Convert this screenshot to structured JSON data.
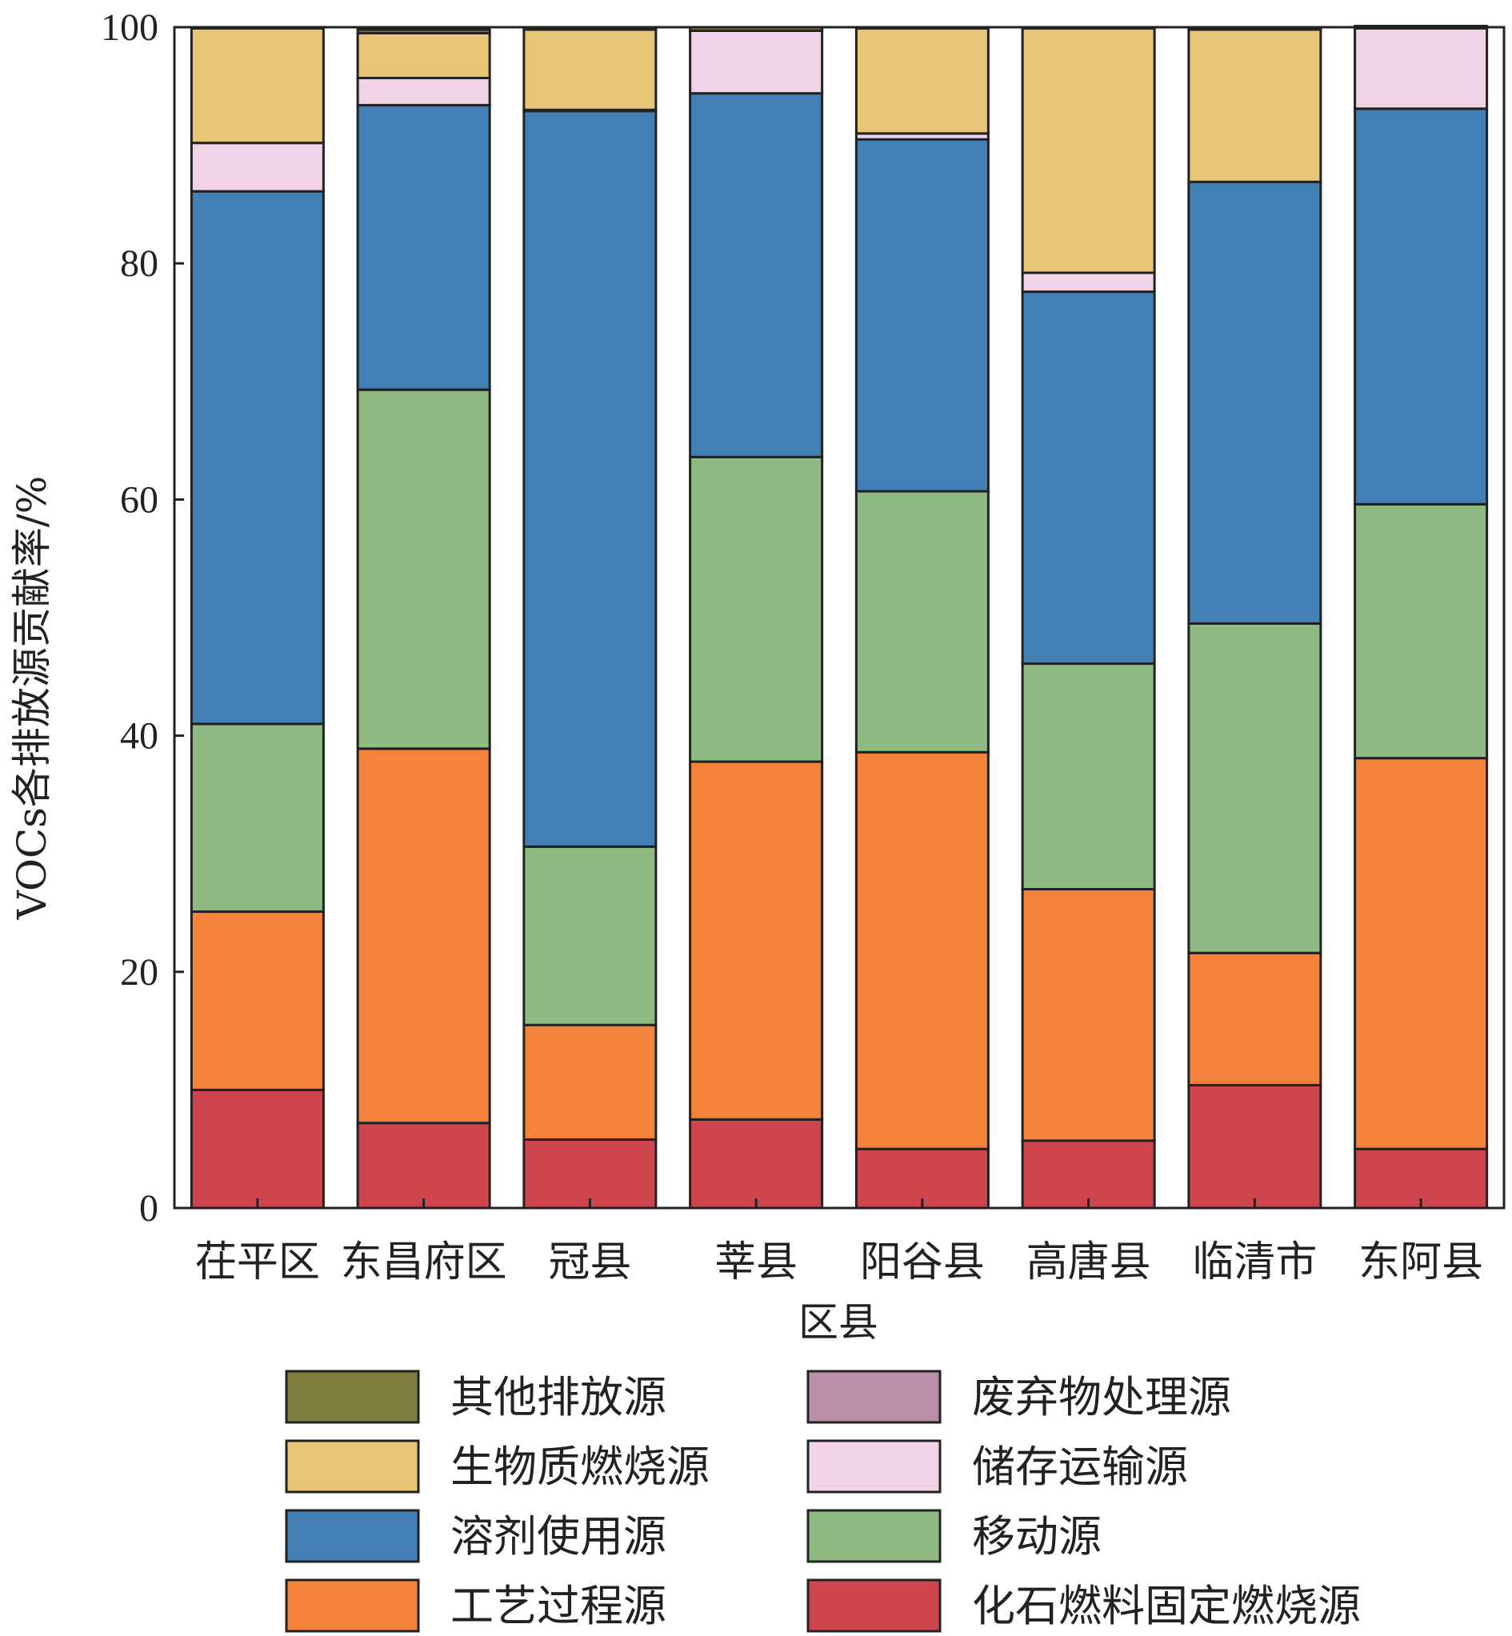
{
  "chart_data": {
    "type": "bar",
    "stacked": true,
    "title": "",
    "xlabel": "区县",
    "ylabel": "VOCs各排放源贡献率/%",
    "ylim": [
      0,
      100
    ],
    "yticks": [
      0,
      20,
      40,
      60,
      80,
      100
    ],
    "grid": false,
    "legend_position": "bottom",
    "categories": [
      "茌平区",
      "东昌府区",
      "冠县",
      "莘县",
      "阳谷县",
      "高唐县",
      "临清市",
      "东阿县"
    ],
    "series": [
      {
        "name": "化石燃料固定燃烧源",
        "color": "#cf454d",
        "values": [
          10.0,
          7.2,
          5.8,
          7.5,
          5.0,
          5.7,
          10.4,
          5.0
        ]
      },
      {
        "name": "工艺过程源",
        "color": "#f4823a",
        "values": [
          15.1,
          31.7,
          9.7,
          30.3,
          33.6,
          21.3,
          11.2,
          33.1
        ]
      },
      {
        "name": "移动源",
        "color": "#8fbb83",
        "values": [
          15.9,
          30.4,
          15.1,
          25.8,
          22.1,
          19.1,
          27.9,
          21.5
        ]
      },
      {
        "name": "溶剂使用源",
        "color": "#427fb4",
        "values": [
          45.1,
          24.1,
          62.3,
          30.8,
          29.8,
          31.5,
          37.4,
          33.5
        ]
      },
      {
        "name": "储存运输源",
        "color": "#f0d3e6",
        "values": [
          4.1,
          2.3,
          0.1,
          5.3,
          0.5,
          1.6,
          0.0,
          6.8
        ]
      },
      {
        "name": "废弃物处理源",
        "color": "#b98ea8",
        "values": [
          0.0,
          0.0,
          0.0,
          0.0,
          0.0,
          0.0,
          0.0,
          0.0
        ]
      },
      {
        "name": "生物质燃烧源",
        "color": "#e6c577",
        "values": [
          9.7,
          3.8,
          6.8,
          0.0,
          8.9,
          20.7,
          12.9,
          0.0
        ]
      },
      {
        "name": "其他排放源",
        "color": "#7e7d3e",
        "values": [
          0.0,
          0.3,
          0.2,
          0.3,
          0.1,
          0.1,
          0.2,
          0.2
        ]
      }
    ],
    "legend_order": [
      "其他排放源",
      "废弃物处理源",
      "生物质燃烧源",
      "储存运输源",
      "溶剂使用源",
      "移动源",
      "工艺过程源",
      "化石燃料固定燃烧源"
    ]
  }
}
